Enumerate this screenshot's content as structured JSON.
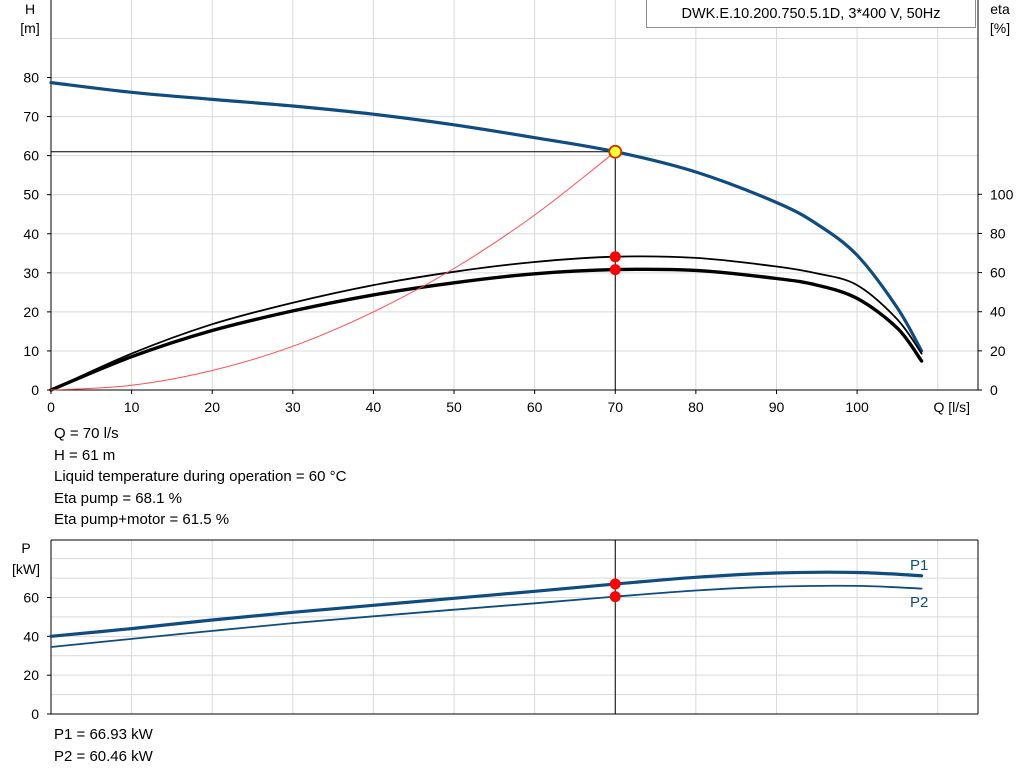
{
  "chart_data": [
    {
      "type": "line",
      "title": "DWK.E.10.200.750.5.1D, 3*400  V, 50Hz",
      "xlabel": "Q [l/s]",
      "ylabel": "H\n[m]",
      "ylabel_right": "eta\n[%]",
      "xlim": [
        0,
        115
      ],
      "ylim": [
        0,
        100
      ],
      "xticks": [
        "0",
        "10",
        "20",
        "30",
        "40",
        "50",
        "60",
        "70",
        "80",
        "90",
        "100"
      ],
      "yticks": [
        "0",
        "10",
        "20",
        "30",
        "40",
        "50",
        "60",
        "70",
        "80"
      ],
      "yticks_right": [
        "0",
        "20",
        "40",
        "60",
        "80",
        "100"
      ],
      "grid": true,
      "series": [
        {
          "name": "",
          "color": "#0f4c81",
          "x": [
            0,
            10,
            20,
            30,
            40,
            50,
            60,
            70,
            80,
            90,
            95,
            100,
            105,
            108
          ],
          "y": [
            78.7,
            76.2,
            74.4,
            72.7,
            70.6,
            67.9,
            64.6,
            61.0,
            55.8,
            48.0,
            42.5,
            34.5,
            21.0,
            10.0
          ]
        },
        {
          "name": "",
          "color": "#000000",
          "x": [
            0,
            10,
            20,
            30,
            40,
            50,
            60,
            70,
            80,
            90,
            95,
            100,
            105,
            108
          ],
          "y": [
            0,
            18.6,
            33.6,
            44.6,
            53.6,
            60.4,
            65.4,
            68.1,
            67.5,
            63.1,
            59.6,
            53.6,
            36.0,
            18.6
          ]
        },
        {
          "name": "",
          "color": "#000000",
          "x": [
            0,
            10,
            20,
            30,
            40,
            50,
            60,
            70,
            80,
            90,
            95,
            100,
            105,
            108
          ],
          "y": [
            0,
            17.0,
            30.4,
            40.4,
            48.6,
            54.8,
            59.4,
            61.5,
            61.1,
            57.0,
            53.6,
            46.8,
            31.6,
            14.8
          ]
        },
        {
          "name": "",
          "color": "#ff4d4d",
          "x": [
            0,
            10,
            20,
            30,
            40,
            50,
            60,
            70
          ],
          "y": [
            0,
            1.2,
            5.0,
            11.2,
            20.0,
            31.1,
            44.8,
            61.0
          ]
        }
      ],
      "operating_point": {
        "Q": 70,
        "H": 61,
        "eta_pump": 68.1,
        "eta_total": 61.5
      }
    },
    {
      "type": "line",
      "title": "",
      "xlabel": "",
      "ylabel": "P\n[kW]",
      "xlim": [
        0,
        115
      ],
      "ylim": [
        0,
        80
      ],
      "yticks": [
        "0",
        "20",
        "40",
        "60"
      ],
      "grid": true,
      "series": [
        {
          "name": "P1",
          "color": "#0f4c81",
          "x": [
            0,
            10,
            20,
            30,
            40,
            50,
            60,
            70,
            80,
            90,
            100,
            108
          ],
          "y": [
            40.0,
            44.0,
            48.4,
            52.4,
            56.0,
            59.6,
            63.2,
            66.93,
            70.4,
            72.6,
            72.9,
            71.2
          ]
        },
        {
          "name": "P2",
          "color": "#0f4c81",
          "x": [
            0,
            10,
            20,
            30,
            40,
            50,
            60,
            70,
            80,
            90,
            100,
            108
          ],
          "y": [
            34.5,
            38.7,
            42.8,
            46.8,
            50.3,
            53.7,
            57.0,
            60.46,
            63.6,
            65.6,
            66.0,
            64.6
          ]
        }
      ],
      "operating_point": {
        "Q": 70,
        "P1": 66.93,
        "P2": 60.46
      }
    }
  ],
  "info_upper": [
    "Q = 70 l/s",
    "H = 61 m",
    "Liquid temperature during operation = 60 °C",
    "Eta pump = 68.1 %",
    "Eta pump+motor = 61.5 %"
  ],
  "info_lower": [
    "P1 = 66.93 kW",
    "P2 = 60.46 kW"
  ]
}
